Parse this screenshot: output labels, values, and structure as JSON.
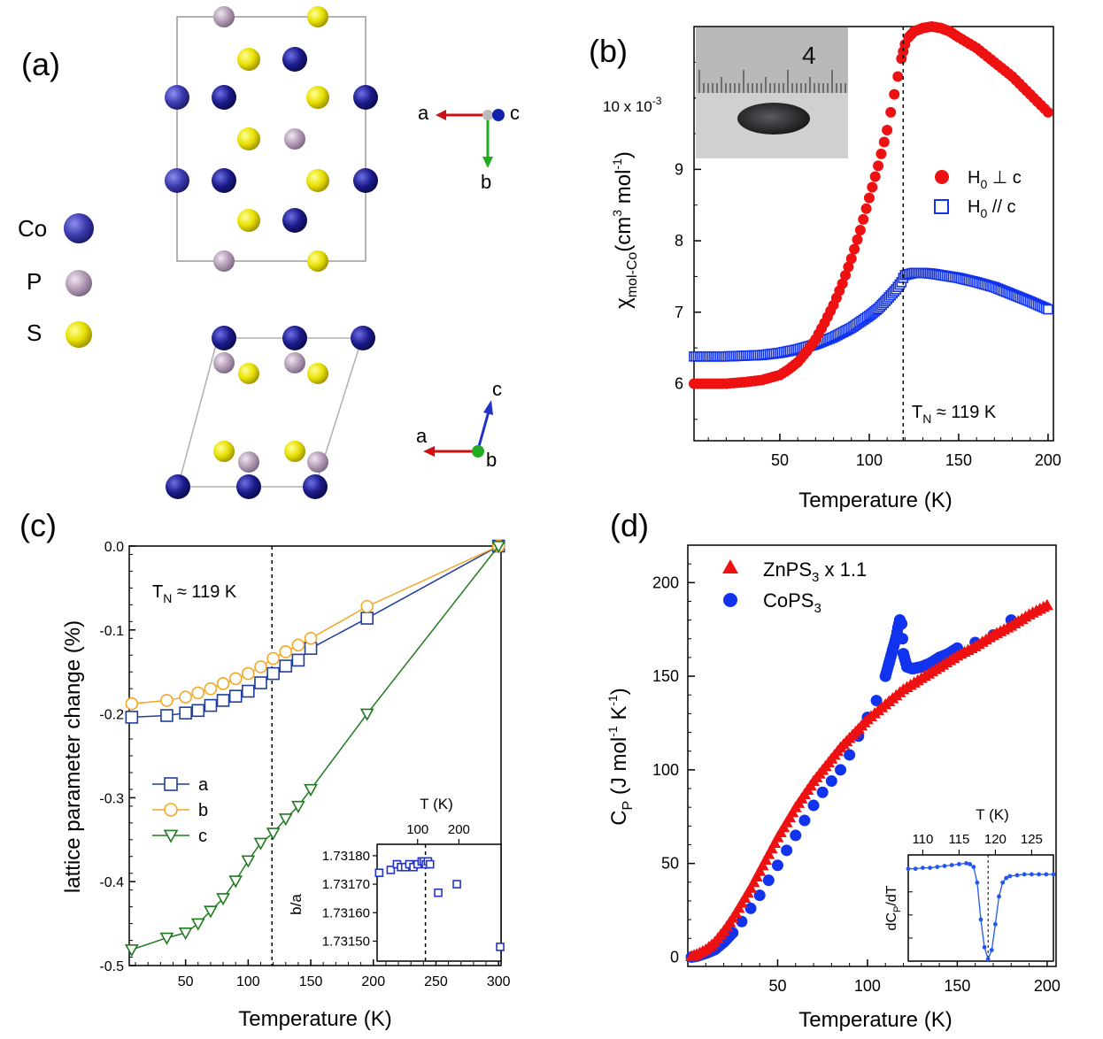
{
  "panels": {
    "a": {
      "label": "(a)",
      "legend": [
        {
          "symbol": "Co",
          "color": "#1c1c8c"
        },
        {
          "symbol": "P",
          "color": "#b39cb6"
        },
        {
          "symbol": "S",
          "color": "#e8e000"
        }
      ],
      "axes_top": {
        "left": "a",
        "out": "c",
        "down": "b"
      },
      "axes_bottom": {
        "up": "c",
        "left": "a",
        "out": "b"
      }
    }
  },
  "chart_data": [
    {
      "id": "b",
      "panel_label": "(b)",
      "type": "scatter",
      "xlabel": "Temperature (K)",
      "ylabel_main": "χ",
      "ylabel_sub": "mol-Co",
      "ylabel_units": "(cm",
      "ylabel_units_sup": "3",
      "ylabel_units_mid": " mol",
      "ylabel_units_sup2": "-1",
      "ylabel_units_end": ")",
      "xlim": [
        2,
        203
      ],
      "ylim": [
        5.2,
        11.0
      ],
      "xticks": [
        "50",
        "100",
        "150",
        "200"
      ],
      "yticks": [
        "6",
        "7",
        "8",
        "9"
      ],
      "scale_note": "10 x 10",
      "scale_note_sup": "-3",
      "inset_ruler_label": "4",
      "tn_label": "T",
      "tn_sub": "N",
      "tn_value": " ≈ 119 K",
      "tn": 119,
      "series": [
        {
          "name": "H0 ⊥ c",
          "legend_main": "H",
          "legend_sub": "0",
          "legend_rest": " ⊥  c",
          "color": "#ee1111",
          "marker": "circle",
          "x": [
            2,
            10,
            20,
            30,
            40,
            50,
            55,
            60,
            65,
            70,
            75,
            80,
            85,
            90,
            95,
            100,
            105,
            110,
            112,
            114,
            116,
            118,
            119,
            120,
            122,
            125,
            130,
            135,
            140,
            145,
            150,
            160,
            170,
            180,
            190,
            200
          ],
          "y": [
            6.0,
            6.0,
            6.0,
            6.02,
            6.05,
            6.12,
            6.2,
            6.3,
            6.45,
            6.62,
            6.85,
            7.1,
            7.4,
            7.75,
            8.15,
            8.6,
            9.05,
            9.55,
            9.8,
            10.05,
            10.3,
            10.55,
            10.65,
            10.75,
            10.85,
            10.93,
            10.98,
            11.0,
            10.98,
            10.93,
            10.85,
            10.7,
            10.5,
            10.3,
            10.05,
            9.8
          ]
        },
        {
          "name": "H0 // c",
          "legend_main": "H",
          "legend_sub": "0",
          "legend_rest": "  //  c",
          "color": "#1133ee",
          "marker": "square",
          "x": [
            2,
            10,
            20,
            30,
            40,
            50,
            60,
            70,
            80,
            90,
            100,
            105,
            110,
            115,
            118,
            119,
            120,
            125,
            130,
            135,
            140,
            150,
            160,
            170,
            180,
            190,
            200
          ],
          "y": [
            6.38,
            6.38,
            6.38,
            6.39,
            6.4,
            6.43,
            6.48,
            6.55,
            6.65,
            6.78,
            6.95,
            7.05,
            7.18,
            7.32,
            7.42,
            7.48,
            7.52,
            7.55,
            7.55,
            7.54,
            7.52,
            7.48,
            7.42,
            7.35,
            7.25,
            7.15,
            7.04
          ]
        }
      ]
    },
    {
      "id": "c",
      "panel_label": "(c)",
      "type": "line",
      "xlabel": "Temperature (K)",
      "ylabel": "lattice parameter change (%)",
      "xlim": [
        5,
        302
      ],
      "ylim": [
        -0.5,
        0.0
      ],
      "xticks": [
        "50",
        "100",
        "150",
        "200",
        "250",
        "300"
      ],
      "yticks": [
        "0.0",
        "-0.1",
        "-0.2",
        "-0.3",
        "-0.4",
        "-0.5"
      ],
      "tn_label": "T",
      "tn_sub": "N",
      "tn_value": " ≈ 119 K",
      "tn": 119,
      "series": [
        {
          "name": "a",
          "color": "#1f3d9e",
          "marker": "square",
          "x": [
            7,
            35,
            50,
            60,
            70,
            80,
            90,
            100,
            110,
            120,
            130,
            140,
            150,
            195,
            300
          ],
          "y": [
            -0.204,
            -0.202,
            -0.199,
            -0.196,
            -0.19,
            -0.184,
            -0.179,
            -0.173,
            -0.163,
            -0.152,
            -0.143,
            -0.136,
            -0.122,
            -0.086,
            0.0
          ]
        },
        {
          "name": "b",
          "color": "#f5a623",
          "marker": "circle",
          "x": [
            7,
            35,
            50,
            60,
            70,
            80,
            90,
            100,
            110,
            120,
            130,
            140,
            150,
            195,
            300
          ],
          "y": [
            -0.188,
            -0.184,
            -0.18,
            -0.175,
            -0.17,
            -0.164,
            -0.158,
            -0.152,
            -0.144,
            -0.134,
            -0.126,
            -0.118,
            -0.11,
            -0.072,
            0.0
          ]
        },
        {
          "name": "c",
          "color": "#1e7a1e",
          "marker": "triangle-down",
          "x": [
            7,
            35,
            50,
            60,
            70,
            80,
            90,
            100,
            110,
            120,
            130,
            140,
            150,
            195,
            300
          ],
          "y": [
            -0.481,
            -0.467,
            -0.461,
            -0.45,
            -0.435,
            -0.42,
            -0.399,
            -0.375,
            -0.354,
            -0.342,
            -0.325,
            -0.31,
            -0.29,
            -0.2,
            0.0
          ]
        }
      ],
      "inset": {
        "xlabel": "T (K)",
        "ylabel": "b/a",
        "xticks": [
          "100",
          "200"
        ],
        "yticks": [
          "1.73180",
          "1.73170",
          "1.73160",
          "1.73150"
        ],
        "xlim": [
          2,
          302
        ],
        "ylim": [
          1.73143,
          1.73184
        ],
        "tn": 119,
        "x": [
          7,
          35,
          50,
          60,
          70,
          80,
          90,
          100,
          110,
          115,
          120,
          125,
          130,
          150,
          195,
          300
        ],
        "y": [
          1.73174,
          1.73175,
          1.73177,
          1.73176,
          1.73176,
          1.73177,
          1.73176,
          1.73177,
          1.73178,
          1.73178,
          1.73177,
          1.73178,
          1.73177,
          1.73167,
          1.7317,
          1.73148
        ]
      }
    },
    {
      "id": "d",
      "panel_label": "(d)",
      "type": "scatter",
      "xlabel": "Temperature (K)",
      "ylabel_main": "C",
      "ylabel_sub": "P",
      "ylabel_units": " (J mol",
      "ylabel_units_sup": "-1",
      "ylabel_units_mid": " K",
      "ylabel_units_sup2": "-1",
      "ylabel_units_end": ")",
      "xlim": [
        0,
        205
      ],
      "ylim": [
        -5,
        220
      ],
      "xticks": [
        "50",
        "100",
        "150",
        "200"
      ],
      "yticks": [
        "0",
        "50",
        "100",
        "150",
        "200"
      ],
      "series": [
        {
          "name": "ZnPS3 x 1.1",
          "legend_main": "ZnPS",
          "legend_sub": "3",
          "legend_rest": " x 1.1",
          "color": "#ee1111",
          "marker": "triangle",
          "x": [
            2,
            5,
            10,
            15,
            20,
            25,
            30,
            35,
            40,
            45,
            50,
            55,
            60,
            65,
            70,
            75,
            80,
            85,
            90,
            95,
            100,
            110,
            120,
            130,
            140,
            150,
            160,
            170,
            180,
            190,
            200
          ],
          "y": [
            0.5,
            1.5,
            4,
            8,
            14,
            21,
            29,
            37,
            46,
            55,
            64,
            72,
            80,
            87,
            94,
            100,
            106,
            112,
            117,
            122,
            127,
            135,
            143,
            149,
            155,
            161,
            166,
            172,
            177,
            183,
            188
          ]
        },
        {
          "name": "CoPS3",
          "legend_main": "CoPS",
          "legend_sub": "3",
          "legend_rest": "",
          "color": "#1133ee",
          "marker": "circle",
          "x": [
            2,
            5,
            10,
            15,
            20,
            25,
            30,
            35,
            40,
            45,
            50,
            55,
            60,
            65,
            70,
            75,
            80,
            85,
            90,
            95,
            100,
            105,
            110,
            112,
            114,
            116,
            117,
            118,
            119,
            120,
            122,
            125,
            130,
            135,
            140,
            145,
            150,
            160,
            170,
            180
          ],
          "y": [
            0,
            0.5,
            2,
            4,
            8,
            13,
            19,
            26,
            33,
            41,
            49,
            57,
            65,
            73,
            81,
            88,
            94,
            100,
            108,
            118,
            128,
            137,
            150,
            157,
            164,
            171,
            176,
            180,
            178,
            162,
            155,
            154,
            155,
            157,
            160,
            162,
            165,
            168,
            172,
            180
          ]
        }
      ],
      "inset": {
        "xlabel": "T (K)",
        "ylabel": "dC",
        "ylabel_sub": "P",
        "ylabel_end": "/dT",
        "xticks": [
          "110",
          "115",
          "120",
          "125"
        ],
        "xlim": [
          108,
          128
        ],
        "ylim": [
          -1.0,
          0.15
        ],
        "tn": 119,
        "x": [
          108,
          109,
          110,
          111,
          112,
          113,
          114,
          115,
          116,
          116.5,
          117,
          117.5,
          118,
          118.5,
          119,
          119.5,
          120,
          120.5,
          121,
          121.5,
          122,
          123,
          124,
          125,
          126,
          127,
          128
        ],
        "y": [
          0.0,
          0.0,
          0.01,
          0.01,
          0.02,
          0.03,
          0.04,
          0.05,
          0.06,
          0.05,
          0.02,
          -0.15,
          -0.55,
          -0.85,
          -0.98,
          -0.88,
          -0.6,
          -0.3,
          -0.15,
          -0.1,
          -0.08,
          -0.07,
          -0.06,
          -0.06,
          -0.06,
          -0.06,
          -0.06
        ]
      }
    }
  ]
}
